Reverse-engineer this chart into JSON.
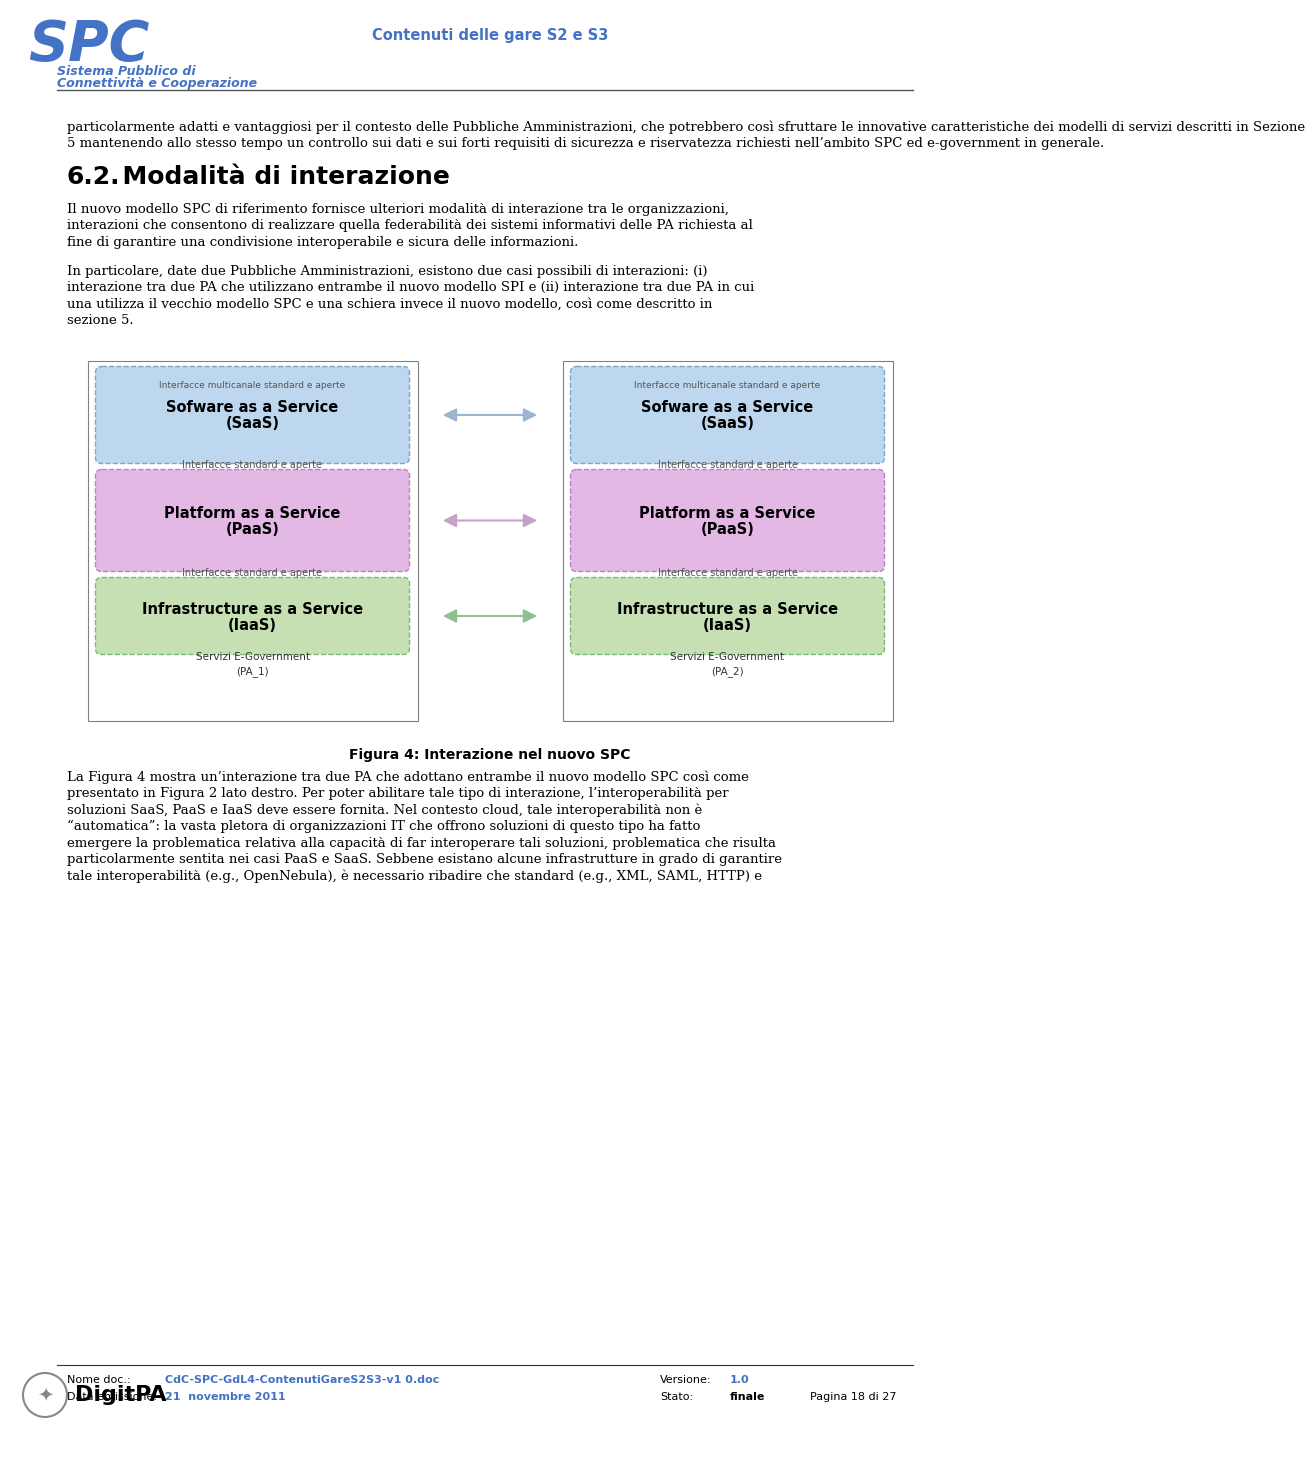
{
  "header_title": "Contenuti delle gare S2 e S3",
  "spc_text": "SPC",
  "spc_subtitle_line1": "Sistema Pubblico di",
  "spc_subtitle_line2": "Connettività e Cooperazione",
  "header_line_color": "#4472c4",
  "spc_color": "#4472c4",
  "title_color": "#4472c4",
  "body_text_color": "#000000",
  "page_bg": "#ffffff",
  "para1_lines": [
    "particolarmente adatti e vantaggiosi per il contesto delle Pubbliche Amministrazioni, che potrebbero così sfruttare le innovative caratteristiche dei modelli di servizi descritti in Sezione",
    "5 mantenendo allo stesso tempo un controllo sui dati e sui forti requisiti di sicurezza e riservatezza richiesti nell’ambito SPC ed e-government in generale."
  ],
  "section_heading_num": "6.2.",
  "section_heading_text": "  Modalità di interazione",
  "section_para1_lines": [
    "Il nuovo modello SPC di riferimento fornisce ulteriori modalità di interazione tra le organizzazioni,",
    "interazioni che consentono di realizzare quella federabilità dei sistemi informativi delle PA richiesta al",
    "fine di garantire una condivisione interoperabile e sicura delle informazioni."
  ],
  "section_para2_lines": [
    "In particolare, date due Pubbliche Amministrazioni, esistono due casi possibili di interazioni: (i)",
    "interazione tra due PA che utilizzano entrambe il nuovo modello SPI e (ii) interazione tra due PA in cui",
    "una utilizza il vecchio modello SPC e una schiera invece il nuovo modello, così come descritto in",
    "sezione 5."
  ],
  "figure_caption": "Figura 4: Interazione nel nuovo SPC",
  "figure_para_lines": [
    "La Figura 4 mostra un’interazione tra due PA che adottano entrambe il nuovo modello SPC così come",
    "presentato in Figura 2 lato destro. Per poter abilitare tale tipo di interazione, l’interoperabilità per",
    "soluzioni SaaS, PaaS e IaaS deve essere fornita. Nel contesto cloud, tale interoperabilità non è",
    "“automatica”: la vasta pletora di organizzazioni IT che offrono soluzioni di questo tipo ha fatto",
    "emergere la problematica relativa alla capacità di far interoperare tali soluzioni, problematica che risulta",
    "particolarmente sentita nei casi PaaS e SaaS. Sebbene esistano alcune infrastrutture in grado di garantire",
    "tale interoperabilità (e.g., OpenNebula), è necessario ribadire che standard (e.g., XML, SAML, HTTP) e"
  ],
  "footer_logo_text": "DigitPA",
  "footer_nome_doc_label": "Nome doc.:",
  "footer_nome_doc_value": "CdC-SPC-GdL4-ContenutiGareS2S3-v1 0.doc",
  "footer_versione_label": "Versione:",
  "footer_versione_value": "1.0",
  "footer_data_label": "Data emissione:",
  "footer_data_value": "21  novembre 2011",
  "footer_stato_label": "Stato:",
  "footer_stato_value": "finale",
  "footer_pagina": "Pagina 18 di 27",
  "saas_color": "#bdd7ee",
  "paas_color": "#e4b8e4",
  "iaas_color": "#c6e0b4",
  "box_border_color": "#808080",
  "inner_border_color": "#7ba7c9",
  "inner_border_paas": "#c07dc0",
  "inner_border_iaas": "#7ab87a",
  "arrow_saas_color": "#9eb5d0",
  "arrow_paas_color": "#c8a0c8",
  "arrow_iaas_color": "#90c090",
  "interface_multicanale_label": "Interfacce multicanale standard e aperte",
  "interface_standard_label": "Interfacce standard e aperte",
  "saas_label1": "Sofware as a Service",
  "saas_label2": "(SaaS)",
  "paas_label1": "Platform as a Service",
  "paas_label2": "(PaaS)",
  "iaas_label1": "Infrastructure as a Service",
  "iaas_label2": "(IaaS)",
  "pa1_label": "Servizi E-Government\n(PA_1)",
  "pa2_label": "Servizi E-Government\n(PA_2)"
}
